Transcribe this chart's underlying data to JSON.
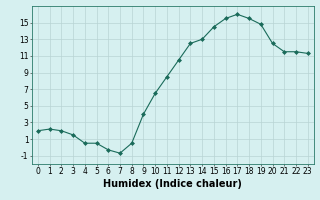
{
  "x": [
    0,
    1,
    2,
    3,
    4,
    5,
    6,
    7,
    8,
    9,
    10,
    11,
    12,
    13,
    14,
    15,
    16,
    17,
    18,
    19,
    20,
    21,
    22,
    23
  ],
  "y": [
    2.0,
    2.2,
    2.0,
    1.5,
    0.5,
    0.5,
    -0.3,
    -0.7,
    0.5,
    4.0,
    6.5,
    8.5,
    10.5,
    12.5,
    13.0,
    14.5,
    15.5,
    16.0,
    15.5,
    14.8,
    12.5,
    11.5,
    11.5,
    11.3
  ],
  "line_color": "#1a6b5a",
  "marker": "D",
  "marker_size": 2,
  "bg_color": "#d6f0f0",
  "grid_color": "#b8d4d4",
  "xlabel": "Humidex (Indice chaleur)",
  "xlim": [
    -0.5,
    23.5
  ],
  "ylim": [
    -2,
    17
  ],
  "yticks": [
    -1,
    1,
    3,
    5,
    7,
    9,
    11,
    13,
    15
  ],
  "xticks": [
    0,
    1,
    2,
    3,
    4,
    5,
    6,
    7,
    8,
    9,
    10,
    11,
    12,
    13,
    14,
    15,
    16,
    17,
    18,
    19,
    20,
    21,
    22,
    23
  ],
  "tick_label_fontsize": 5.5,
  "xlabel_fontsize": 7
}
